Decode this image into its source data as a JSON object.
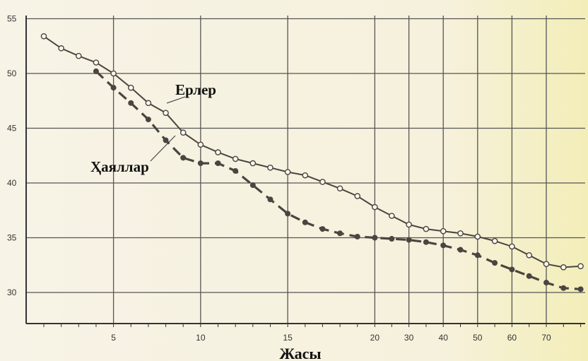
{
  "chart_data": {
    "type": "line",
    "xlabel": "Жасы",
    "ylabel": "",
    "ylim": [
      30,
      55
    ],
    "y_ticks": [
      30,
      35,
      40,
      45,
      50,
      55
    ],
    "x_tick_labels": [
      "5",
      "10",
      "15",
      "20",
      "30",
      "40",
      "50",
      "60",
      "70"
    ],
    "x_points": [
      1,
      2,
      3,
      4,
      5,
      6,
      7,
      8,
      9,
      10,
      11,
      12,
      13,
      14,
      15,
      16,
      17,
      18,
      19,
      20,
      25,
      30,
      35,
      40,
      45,
      50,
      55,
      60,
      65,
      70,
      75,
      80
    ],
    "grid": true,
    "series": [
      {
        "name": "Ерлер",
        "color": "#4a4540",
        "dash": "solid",
        "marker": "open-circle",
        "values": [
          53.4,
          52.3,
          51.6,
          51.0,
          50.0,
          48.7,
          47.3,
          46.4,
          44.6,
          43.5,
          42.8,
          42.2,
          41.8,
          41.4,
          41.0,
          40.7,
          40.1,
          39.5,
          38.8,
          37.8,
          37.0,
          36.2,
          35.8,
          35.6,
          35.4,
          35.1,
          34.7,
          34.2,
          33.4,
          32.6,
          32.3,
          32.4
        ]
      },
      {
        "name": "Ҳаяллар",
        "color": "#4a4540",
        "dash": "dashed",
        "marker": "filled-circle",
        "values": [
          null,
          null,
          null,
          50.2,
          48.7,
          47.3,
          45.8,
          43.9,
          42.3,
          41.8,
          41.8,
          41.1,
          39.8,
          38.5,
          37.2,
          36.4,
          35.8,
          35.4,
          35.1,
          35.0,
          34.9,
          34.8,
          34.6,
          34.3,
          33.9,
          33.4,
          32.7,
          32.1,
          31.5,
          30.9,
          30.4,
          30.3
        ]
      }
    ]
  }
}
